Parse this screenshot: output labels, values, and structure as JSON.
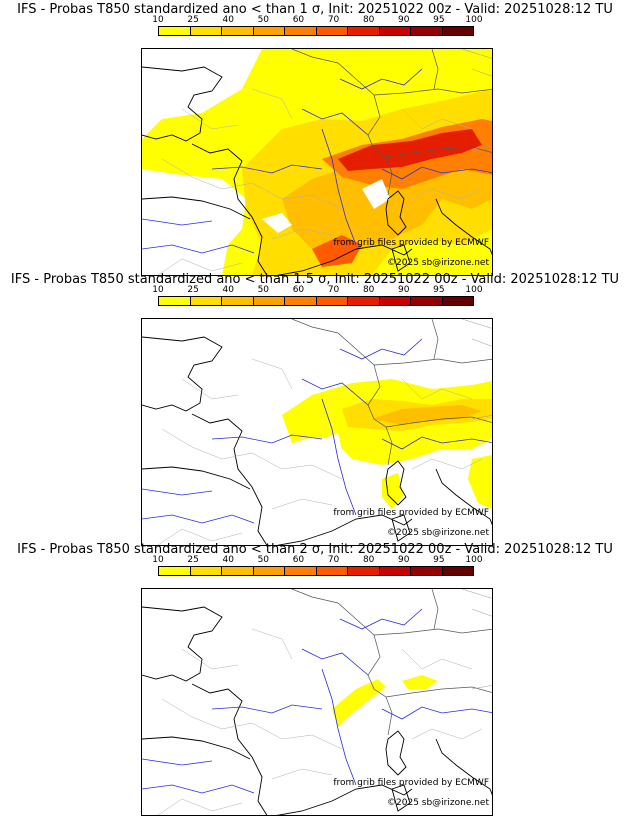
{
  "colorbar": {
    "ticks": [
      "10",
      "25",
      "40",
      "50",
      "60",
      "70",
      "80",
      "90",
      "95",
      "100"
    ],
    "colors": [
      "#ffff00",
      "#ffde00",
      "#ffbf00",
      "#ffa000",
      "#ff8000",
      "#ff5a00",
      "#e61e00",
      "#c80000",
      "#960000",
      "#640000"
    ]
  },
  "panels": [
    {
      "title": "IFS - Probas T850  standardized ano < than 1 σ, Init: 20251022 00z - Valid: 20251028:12 TU",
      "source_note": "from grib files provided by ECMWF",
      "copyright": "©2025 sb@irizone.net"
    },
    {
      "title": "IFS - Probas T850  standardized ano < than 1.5 σ, Init: 20251022 00z - Valid: 20251028:12 TU",
      "source_note": "from grib files provided by ECMWF",
      "copyright": "©2025 sb@irizone.net"
    },
    {
      "title": "IFS - Probas T850  standardized ano < than 2 σ, Init: 20251022 00z - Valid: 20251028:12 TU",
      "source_note": "from grib files provided by ECMWF",
      "copyright": "©2025 sb@irizone.net"
    }
  ]
}
